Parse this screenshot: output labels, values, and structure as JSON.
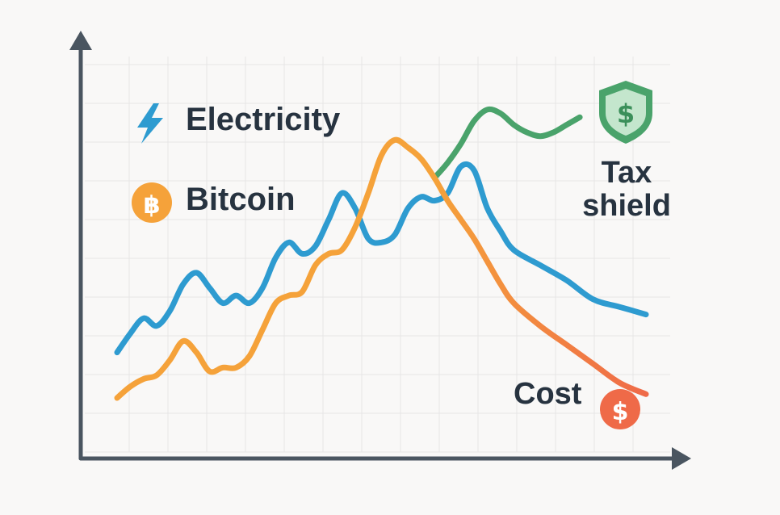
{
  "labels": {
    "electricity": "Electricity",
    "bitcoin": "Bitcoin",
    "tax_shield_line1": "Tax",
    "tax_shield_line2": "shield",
    "cost": "Cost",
    "dollar": "$",
    "bitcoin_symbol": "฿"
  },
  "icons": {
    "electricity": "lightning-bolt-icon",
    "bitcoin": "bitcoin-coin-icon",
    "tax_shield": "shield-dollar-icon",
    "cost": "dollar-coin-icon"
  },
  "colors": {
    "electricity": "#2e9bd0",
    "bitcoin": "#f5a23a",
    "tax_shield": "#4aa36b",
    "cost": "#ef6a48",
    "text": "#273340",
    "axis": "#4a5560",
    "grid": "#e6e6e6"
  },
  "chart_data": {
    "type": "line",
    "title": "",
    "xlabel": "",
    "ylabel": "",
    "grid": true,
    "xlim": [
      0,
      100
    ],
    "ylim": [
      0,
      100
    ],
    "series": [
      {
        "name": "Electricity",
        "color": "#2e9bd0",
        "x": [
          0,
          2.5,
          5,
          7.5,
          10,
          12.5,
          15,
          17.5,
          20,
          22.5,
          25,
          27.5,
          30,
          32.5,
          35,
          37.5,
          40,
          42.5,
          45,
          47.5,
          50,
          52.5,
          55,
          57.5,
          60,
          62.5,
          65,
          67.5,
          70,
          72.5,
          75,
          80,
          85,
          90,
          95,
          100
        ],
        "y": [
          22,
          27,
          31,
          29,
          33,
          40,
          43,
          39,
          35,
          37,
          35,
          39,
          47,
          51,
          48,
          50,
          57,
          64,
          60,
          52,
          51,
          53,
          60,
          63,
          62,
          64,
          71,
          70,
          60,
          54,
          49,
          45,
          41,
          36,
          34,
          32
        ]
      },
      {
        "name": "Bitcoin",
        "color": "#f5a23a",
        "x": [
          0,
          2.5,
          5,
          7.5,
          10,
          12.5,
          15,
          17.5,
          20,
          22.5,
          25,
          27.5,
          30,
          32.5,
          35,
          37.5,
          40,
          42.5,
          45,
          47.5,
          50,
          52.5,
          55,
          57.5,
          60,
          62.5,
          65,
          67.5,
          70,
          72.5,
          75,
          80,
          85,
          90,
          95,
          100
        ],
        "y": [
          10,
          13,
          15,
          16,
          20,
          25,
          22,
          17,
          18,
          18,
          21,
          28,
          35,
          37,
          38,
          45,
          48,
          49,
          55,
          64,
          74,
          78,
          76,
          73,
          68,
          62,
          57,
          52,
          46,
          40,
          35,
          29,
          24,
          19,
          14,
          11
        ]
      },
      {
        "name": "Tax shield",
        "color": "#4aa36b",
        "x": [
          60,
          62.5,
          65,
          67.5,
          70,
          72.5,
          75,
          77.5,
          80,
          82.5,
          85,
          87.5
        ],
        "y": [
          68,
          72,
          77,
          83,
          86,
          85,
          82,
          80,
          79,
          80,
          82,
          84
        ]
      },
      {
        "name": "Cost",
        "color": "#ef6a48",
        "x": [
          0,
          100
        ],
        "y": [
          0,
          0
        ]
      }
    ]
  }
}
